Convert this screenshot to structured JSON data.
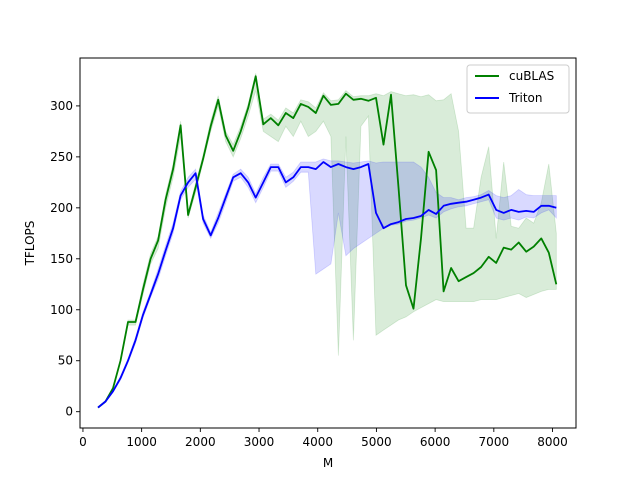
{
  "chart_data": {
    "type": "line",
    "xlabel": "M",
    "ylabel": "TFLOPS",
    "xlim": [
      -50,
      8400
    ],
    "ylim": [
      -16,
      347
    ],
    "xticks": [
      0,
      1000,
      2000,
      3000,
      4000,
      5000,
      6000,
      7000,
      8000
    ],
    "yticks": [
      0,
      50,
      100,
      150,
      200,
      250,
      300
    ],
    "grid": false,
    "legend_position": "top-right",
    "x": [
      256,
      384,
      512,
      640,
      768,
      896,
      1024,
      1152,
      1280,
      1408,
      1536,
      1664,
      1792,
      1920,
      2048,
      2176,
      2304,
      2432,
      2560,
      2688,
      2816,
      2944,
      3072,
      3200,
      3328,
      3456,
      3584,
      3712,
      3840,
      3968,
      4096,
      4224,
      4352,
      4480,
      4608,
      4736,
      4864,
      4992,
      5120,
      5248,
      5376,
      5504,
      5632,
      5760,
      5888,
      6016,
      6144,
      6272,
      6400,
      6528,
      6656,
      6784,
      6912,
      7040,
      7168,
      7296,
      7424,
      7552,
      7680,
      7808,
      7936,
      8064
    ],
    "series": [
      {
        "name": "cuBLAS",
        "color": "#008000",
        "values": [
          4,
          10,
          23,
          50,
          88,
          88,
          120,
          150,
          168,
          208,
          238,
          281,
          193,
          220,
          248,
          280,
          306,
          271,
          256,
          275,
          298,
          329,
          282,
          288,
          281,
          293,
          288,
          302,
          299,
          293,
          310,
          301,
          302,
          312,
          306,
          307,
          305,
          308,
          262,
          311,
          220,
          124,
          101,
          170,
          255,
          237,
          118,
          141,
          128,
          132,
          136,
          142,
          152,
          146,
          161,
          159,
          166,
          157,
          162,
          170,
          156,
          125
        ],
        "band_low": [
          4,
          10,
          23,
          50,
          85,
          85,
          115,
          145,
          160,
          200,
          230,
          270,
          190,
          215,
          245,
          275,
          300,
          265,
          250,
          268,
          290,
          315,
          275,
          270,
          265,
          280,
          270,
          285,
          270,
          275,
          285,
          270,
          55,
          270,
          70,
          280,
          290,
          75,
          80,
          85,
          90,
          93,
          98,
          102,
          106,
          110,
          108,
          108,
          108,
          108,
          108,
          110,
          110,
          110,
          112,
          114,
          116,
          112,
          115,
          118,
          120,
          120
        ],
        "band_high": [
          4,
          10,
          23,
          50,
          90,
          90,
          125,
          155,
          172,
          213,
          243,
          285,
          196,
          224,
          252,
          285,
          310,
          275,
          262,
          280,
          302,
          332,
          287,
          292,
          286,
          298,
          293,
          306,
          304,
          298,
          313,
          305,
          306,
          315,
          309,
          310,
          310,
          312,
          310,
          314,
          312,
          310,
          311,
          309,
          311,
          305,
          306,
          312,
          275,
          180,
          180,
          230,
          260,
          170,
          245,
          182,
          180,
          190,
          185,
          205,
          243,
          175
        ]
      },
      {
        "name": "Triton",
        "color": "#0000ff",
        "values": [
          4,
          10,
          20,
          33,
          50,
          70,
          95,
          115,
          135,
          158,
          180,
          212,
          225,
          234,
          189,
          173,
          190,
          210,
          230,
          234,
          225,
          210,
          225,
          240,
          240,
          225,
          230,
          240,
          240,
          238,
          245,
          240,
          243,
          240,
          238,
          240,
          243,
          195,
          180,
          184,
          186,
          189,
          190,
          192,
          198,
          194,
          202,
          204,
          205,
          206,
          208,
          210,
          213,
          198,
          195,
          198,
          196,
          197,
          196,
          202,
          202,
          200
        ],
        "band_low": [
          4,
          10,
          19,
          31,
          48,
          67,
          92,
          112,
          130,
          153,
          175,
          208,
          220,
          228,
          185,
          170,
          185,
          205,
          226,
          230,
          220,
          205,
          220,
          236,
          236,
          220,
          226,
          235,
          235,
          135,
          140,
          145,
          195,
          153,
          160,
          165,
          170,
          175,
          180,
          183,
          184,
          187,
          188,
          190,
          193,
          190,
          196,
          199,
          201,
          202,
          204,
          206,
          208,
          190,
          188,
          190,
          188,
          191,
          190,
          195,
          198,
          190
        ],
        "band_high": [
          4,
          10,
          21,
          35,
          52,
          73,
          98,
          118,
          140,
          163,
          185,
          216,
          230,
          238,
          193,
          176,
          195,
          214,
          233,
          238,
          230,
          214,
          230,
          243,
          243,
          230,
          235,
          245,
          245,
          245,
          248,
          246,
          246,
          245,
          244,
          245,
          246,
          244,
          245,
          245,
          245,
          245,
          245,
          240,
          230,
          215,
          210,
          210,
          208,
          210,
          211,
          213,
          217,
          212,
          210,
          212,
          218,
          213,
          212,
          212,
          212,
          212
        ]
      }
    ]
  }
}
